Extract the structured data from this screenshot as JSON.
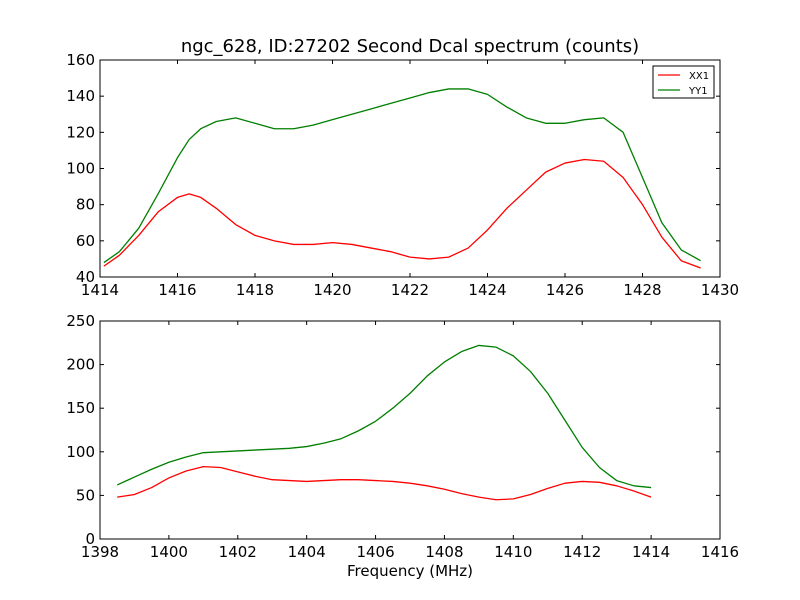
{
  "title": "ngc_628, ID:27202 Second Dcal spectrum (counts)",
  "colors": {
    "XX1": "#ff0000",
    "YY1": "#007f00",
    "axes": "#000000",
    "background": "#ffffff"
  },
  "chart_data": [
    {
      "type": "line",
      "title": "ngc_628, ID:27202 Second Dcal spectrum (counts)",
      "xlabel": "",
      "ylabel": "",
      "xlim": [
        1414,
        1430
      ],
      "ylim": [
        40,
        160
      ],
      "xticks": [
        "1414",
        "1416",
        "1418",
        "1420",
        "1422",
        "1424",
        "1426",
        "1428",
        "1430"
      ],
      "yticks": [
        "40",
        "60",
        "80",
        "100",
        "120",
        "140",
        "160"
      ],
      "grid": false,
      "legend": "top-right",
      "series": [
        {
          "name": "XX1",
          "color": "#ff0000",
          "x": [
            1414.1,
            1414.5,
            1415.0,
            1415.5,
            1416.0,
            1416.3,
            1416.6,
            1417.0,
            1417.5,
            1418.0,
            1418.5,
            1419.0,
            1419.5,
            1420.0,
            1420.5,
            1421.0,
            1421.5,
            1422.0,
            1422.5,
            1423.0,
            1423.5,
            1424.0,
            1424.5,
            1425.0,
            1425.5,
            1426.0,
            1426.5,
            1427.0,
            1427.5,
            1428.0,
            1428.5,
            1429.0,
            1429.5
          ],
          "y": [
            46,
            52,
            63,
            76,
            84,
            86,
            84,
            78,
            69,
            63,
            60,
            58,
            58,
            59,
            58,
            56,
            54,
            51,
            50,
            51,
            56,
            66,
            78,
            88,
            98,
            103,
            105,
            104,
            95,
            80,
            62,
            49,
            45
          ]
        },
        {
          "name": "YY1",
          "color": "#007f00",
          "x": [
            1414.1,
            1414.5,
            1415.0,
            1415.5,
            1416.0,
            1416.3,
            1416.6,
            1417.0,
            1417.5,
            1418.0,
            1418.5,
            1419.0,
            1419.5,
            1420.0,
            1420.5,
            1421.0,
            1421.5,
            1422.0,
            1422.5,
            1423.0,
            1423.5,
            1424.0,
            1424.5,
            1425.0,
            1425.5,
            1426.0,
            1426.5,
            1427.0,
            1427.5,
            1428.0,
            1428.5,
            1429.0,
            1429.5
          ],
          "y": [
            48,
            54,
            67,
            86,
            106,
            116,
            122,
            126,
            128,
            125,
            122,
            122,
            124,
            127,
            130,
            133,
            136,
            139,
            142,
            144,
            144,
            141,
            134,
            128,
            125,
            125,
            127,
            128,
            120,
            95,
            70,
            55,
            49
          ]
        }
      ]
    },
    {
      "type": "line",
      "title": "",
      "xlabel": "Frequency (MHz)",
      "ylabel": "",
      "xlim": [
        1398,
        1416
      ],
      "ylim": [
        0,
        250
      ],
      "xticks": [
        "1398",
        "1400",
        "1402",
        "1404",
        "1406",
        "1408",
        "1410",
        "1412",
        "1414",
        "1416"
      ],
      "yticks": [
        "0",
        "50",
        "100",
        "150",
        "200",
        "250"
      ],
      "grid": false,
      "legend": "none",
      "series": [
        {
          "color": "#ff0000",
          "x": [
            1398.5,
            1399.0,
            1399.5,
            1400.0,
            1400.5,
            1401.0,
            1401.5,
            1402.0,
            1402.5,
            1403.0,
            1403.5,
            1404.0,
            1404.5,
            1405.0,
            1405.5,
            1406.0,
            1406.5,
            1407.0,
            1407.5,
            1408.0,
            1408.5,
            1409.0,
            1409.5,
            1410.0,
            1410.5,
            1411.0,
            1411.5,
            1412.0,
            1412.5,
            1413.0,
            1413.5,
            1414.0
          ],
          "y": [
            48,
            51,
            59,
            70,
            78,
            83,
            82,
            77,
            72,
            68,
            67,
            66,
            67,
            68,
            68,
            67,
            66,
            64,
            61,
            57,
            52,
            48,
            45,
            46,
            51,
            58,
            64,
            66,
            65,
            61,
            55,
            48
          ]
        },
        {
          "color": "#007f00",
          "x": [
            1398.5,
            1399.0,
            1399.5,
            1400.0,
            1400.5,
            1401.0,
            1401.5,
            1402.0,
            1402.5,
            1403.0,
            1403.5,
            1404.0,
            1404.5,
            1405.0,
            1405.5,
            1406.0,
            1406.5,
            1407.0,
            1407.5,
            1408.0,
            1408.5,
            1409.0,
            1409.5,
            1410.0,
            1410.5,
            1411.0,
            1411.5,
            1412.0,
            1412.5,
            1413.0,
            1413.5,
            1414.0
          ],
          "y": [
            62,
            71,
            80,
            88,
            94,
            99,
            100,
            101,
            102,
            103,
            104,
            106,
            110,
            115,
            124,
            135,
            150,
            167,
            187,
            203,
            215,
            222,
            220,
            210,
            192,
            167,
            136,
            105,
            82,
            67,
            61,
            59
          ]
        }
      ]
    }
  ]
}
